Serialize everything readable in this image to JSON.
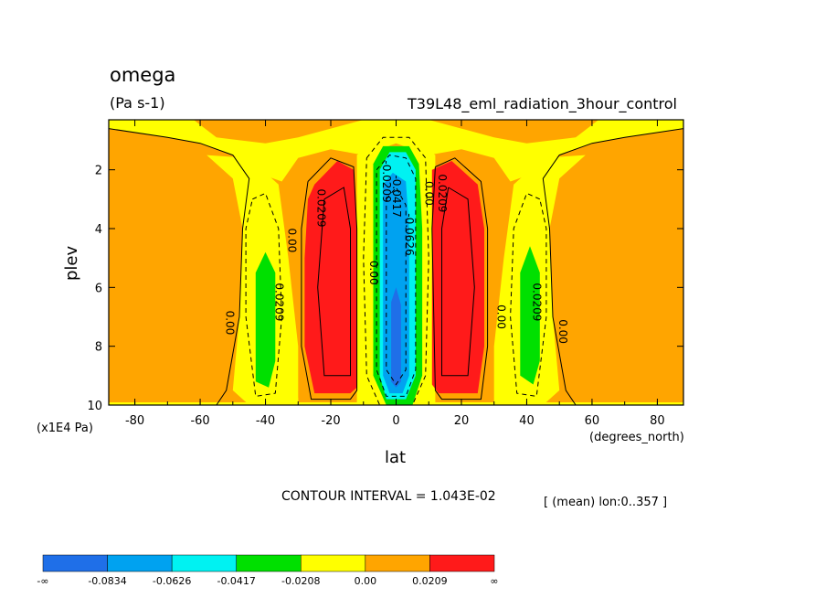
{
  "chart_data": {
    "type": "heatmap",
    "title": "omega",
    "units": "(Pa s-1)",
    "experiment": "T39L48_eml_radiation_3hour_control",
    "xlabel": "lat",
    "x_units": "(degrees_north)",
    "ylabel": "plev",
    "y_units": "(x1E4 Pa)",
    "xlim": [
      -88,
      88
    ],
    "ylim": [
      10,
      0.3
    ],
    "x_ticks": [
      "-80",
      "-60",
      "-40",
      "-20",
      "0",
      "20",
      "40",
      "60",
      "80"
    ],
    "y_ticks": [
      "2",
      "4",
      "6",
      "8",
      "10"
    ],
    "contour_interval_text": "CONTOUR INTERVAL = 1.043E-02",
    "region_text": "[ (mean) lon:0..357 ]",
    "colorbar": {
      "labels": [
        "-∞",
        "-0.0834",
        "-0.0626",
        "-0.0417",
        "-0.0208",
        "0.00",
        "0.0209",
        "∞"
      ],
      "colors": [
        "#1f6fe8",
        "#00a2f0",
        "#00f2f2",
        "#00e000",
        "#ffff00",
        "#ffa500",
        "#ff1a1a"
      ]
    },
    "contour_labels": [
      {
        "text": "0.00",
        "lat": -52,
        "plev": 7.2
      },
      {
        "text": "0.0209",
        "lat": -37,
        "plev": 6.5
      },
      {
        "text": "0.00",
        "lat": -33,
        "plev": 4.4
      },
      {
        "text": "0.0209",
        "lat": -24,
        "plev": 3.3
      },
      {
        "text": "0.00",
        "lat": -8,
        "plev": 5.5
      },
      {
        "text": "-0.0209",
        "lat": -4,
        "plev": 2.4
      },
      {
        "text": "-0.0417",
        "lat": -1,
        "plev": 2.9
      },
      {
        "text": "-0.0626",
        "lat": 3,
        "plev": 4.2
      },
      {
        "text": "0.00",
        "lat": 9,
        "plev": 2.8
      },
      {
        "text": "0.0209",
        "lat": 13,
        "plev": 2.8
      },
      {
        "text": "0.00",
        "lat": 31,
        "plev": 7.0
      },
      {
        "text": "0.0209",
        "lat": 42,
        "plev": 6.5
      },
      {
        "text": "0.00",
        "lat": 50,
        "plev": 7.5
      }
    ]
  }
}
